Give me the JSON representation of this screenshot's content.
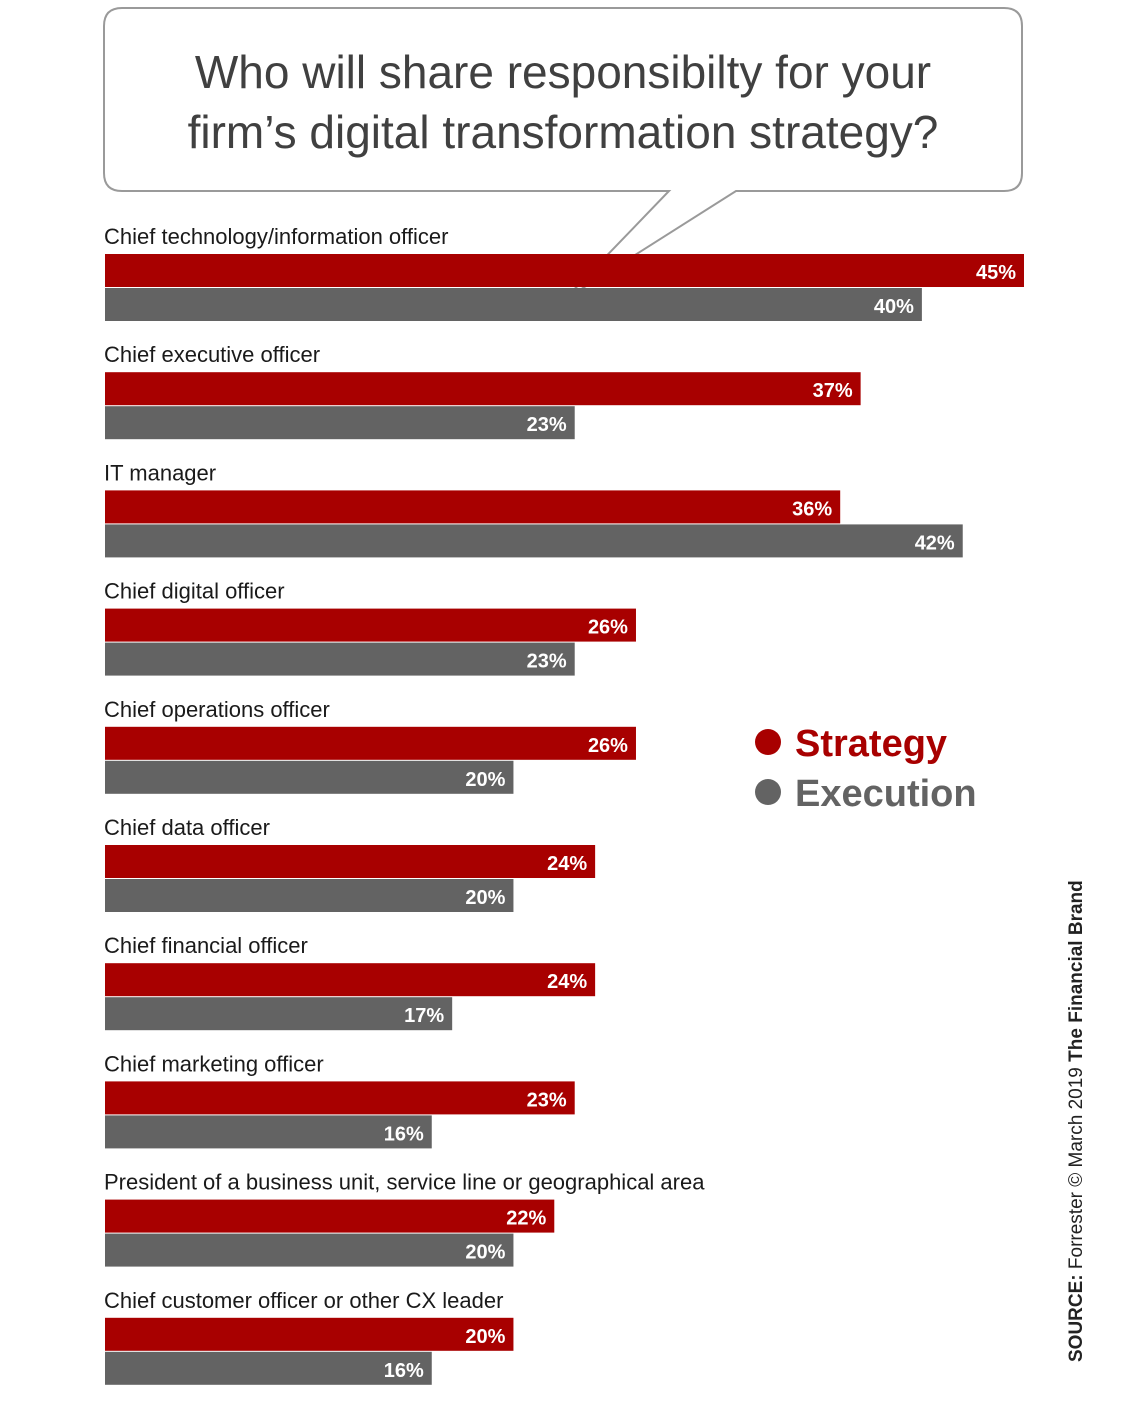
{
  "title_line1": "Who will share responsibilty for your",
  "title_line2": "firm’s digital transformation strategy?",
  "legend": {
    "strategy": "Strategy",
    "execution": "Execution"
  },
  "source": {
    "prefix": "SOURCE:",
    "text": " Forrester © March 2019 ",
    "brand": "The Financial Brand"
  },
  "colors": {
    "strategy": "#a80000",
    "execution": "#636363"
  },
  "chart_data": {
    "type": "bar",
    "orientation": "horizontal",
    "title": "Who will share responsibilty for your firm’s digital transformation strategy?",
    "categories": [
      "Chief technology/information officer",
      "Chief executive officer",
      "IT manager",
      "Chief digital officer",
      "Chief operations officer",
      "Chief data officer",
      "Chief financial officer",
      "Chief marketing officer",
      "President of a business unit, service line or geographical area",
      "Chief customer officer or  other CX leader"
    ],
    "series": [
      {
        "name": "Strategy",
        "values": [
          45,
          37,
          36,
          26,
          26,
          24,
          24,
          23,
          22,
          20
        ]
      },
      {
        "name": "Execution",
        "values": [
          40,
          23,
          42,
          23,
          20,
          20,
          17,
          16,
          20,
          16
        ]
      }
    ],
    "value_suffix": "%",
    "xlim": [
      0,
      45
    ],
    "grid": false,
    "legend_position": "right"
  }
}
